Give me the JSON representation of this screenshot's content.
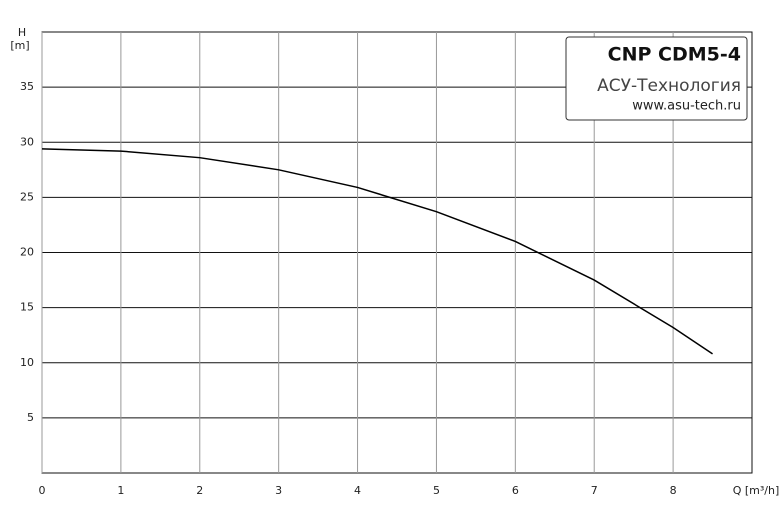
{
  "chart_data": {
    "type": "line",
    "y_label": "H",
    "y_unit": "[m]",
    "x_label": "Q [m³/h]",
    "annotations": [
      "CNP CDM5-4",
      "АСУ-Технология",
      "www.asu-tech.ru"
    ],
    "x": [
      0,
      1,
      2,
      3,
      4,
      5,
      6,
      7,
      8,
      8.5
    ],
    "series": [
      {
        "color": "#000000",
        "values": [
          29.4,
          29.2,
          28.6,
          27.5,
          25.9,
          23.7,
          21.0,
          17.5,
          13.2,
          10.8
        ]
      }
    ],
    "xlim": [
      0,
      9
    ],
    "xticks": [
      0,
      1,
      2,
      3,
      4,
      5,
      6,
      7,
      8
    ],
    "ylim": [
      0,
      40
    ],
    "yticks": [
      5,
      10,
      15,
      20,
      25,
      30,
      35
    ],
    "grid": true
  }
}
